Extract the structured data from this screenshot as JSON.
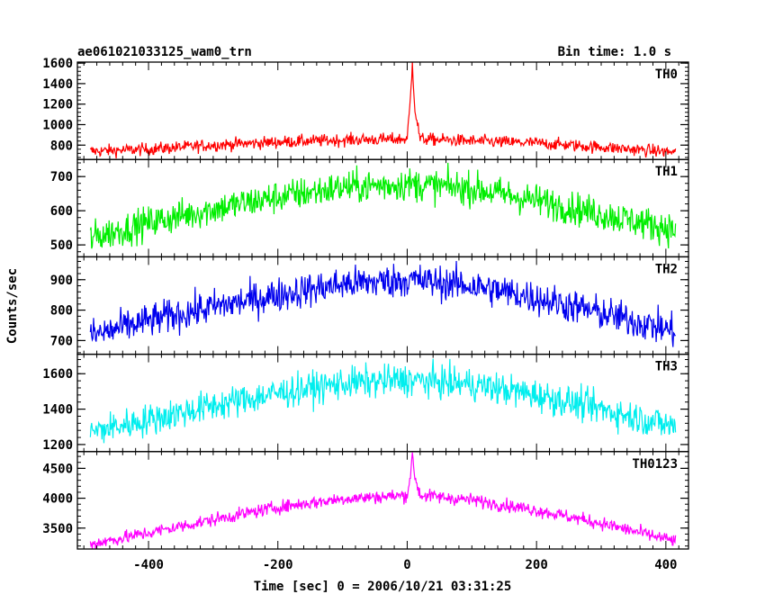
{
  "header": {
    "title": "ae061021033125_wam0_trn",
    "bin_time": "Bin time: 1.0 s"
  },
  "chart_data": {
    "type": "line",
    "xlabel": "Time [sec] 0 = 2006/10/21 03:31:25",
    "ylabel": "Counts/sec",
    "xlim": [
      -510,
      435
    ],
    "xticks": [
      -400,
      -200,
      0,
      200,
      400
    ],
    "x_range": [
      -490,
      415
    ],
    "bin_seconds": 1.0,
    "panels": [
      {
        "name": "TH0",
        "color": "#ff0000",
        "ylim": [
          660,
          1610
        ],
        "yticks": [
          800,
          1000,
          1200,
          1400,
          1600
        ],
        "series": [
          {
            "x": -490,
            "y": 740
          },
          {
            "x": -400,
            "y": 760
          },
          {
            "x": -300,
            "y": 800
          },
          {
            "x": -200,
            "y": 830
          },
          {
            "x": -100,
            "y": 850
          },
          {
            "x": 0,
            "y": 860
          },
          {
            "x": 5,
            "y": 1250
          },
          {
            "x": 8,
            "y": 1600
          },
          {
            "x": 12,
            "y": 1150
          },
          {
            "x": 20,
            "y": 860
          },
          {
            "x": 100,
            "y": 840
          },
          {
            "x": 200,
            "y": 820
          },
          {
            "x": 300,
            "y": 780
          },
          {
            "x": 415,
            "y": 730
          }
        ],
        "noise_sd": 30
      },
      {
        "name": "TH1",
        "color": "#00ee00",
        "ylim": [
          465,
          750
        ],
        "yticks": [
          500,
          600,
          700
        ],
        "series": [
          {
            "x": -490,
            "y": 520
          },
          {
            "x": -400,
            "y": 565
          },
          {
            "x": -300,
            "y": 605
          },
          {
            "x": -200,
            "y": 640
          },
          {
            "x": -100,
            "y": 668
          },
          {
            "x": 0,
            "y": 678
          },
          {
            "x": 100,
            "y": 665
          },
          {
            "x": 200,
            "y": 630
          },
          {
            "x": 300,
            "y": 590
          },
          {
            "x": 415,
            "y": 545
          }
        ],
        "noise_sd": 24
      },
      {
        "name": "TH2",
        "color": "#0000ee",
        "ylim": [
          655,
          975
        ],
        "yticks": [
          700,
          800,
          900
        ],
        "series": [
          {
            "x": -490,
            "y": 715
          },
          {
            "x": -400,
            "y": 765
          },
          {
            "x": -300,
            "y": 810
          },
          {
            "x": -200,
            "y": 850
          },
          {
            "x": -100,
            "y": 885
          },
          {
            "x": 0,
            "y": 900
          },
          {
            "x": 100,
            "y": 880
          },
          {
            "x": 200,
            "y": 840
          },
          {
            "x": 300,
            "y": 790
          },
          {
            "x": 415,
            "y": 730
          }
        ],
        "noise_sd": 28
      },
      {
        "name": "TH3",
        "color": "#00eeee",
        "ylim": [
          1160,
          1710
        ],
        "yticks": [
          1200,
          1400,
          1600
        ],
        "series": [
          {
            "x": -490,
            "y": 1270
          },
          {
            "x": -400,
            "y": 1340
          },
          {
            "x": -300,
            "y": 1420
          },
          {
            "x": -200,
            "y": 1490
          },
          {
            "x": -100,
            "y": 1545
          },
          {
            "x": 0,
            "y": 1565
          },
          {
            "x": 100,
            "y": 1540
          },
          {
            "x": 200,
            "y": 1480
          },
          {
            "x": 300,
            "y": 1400
          },
          {
            "x": 415,
            "y": 1300
          }
        ],
        "noise_sd": 45
      },
      {
        "name": "TH0123",
        "color": "#ff00ff",
        "ylim": [
          3150,
          4780
        ],
        "yticks": [
          3500,
          4000,
          4500
        ],
        "series": [
          {
            "x": -490,
            "y": 3230
          },
          {
            "x": -400,
            "y": 3420
          },
          {
            "x": -300,
            "y": 3640
          },
          {
            "x": -200,
            "y": 3850
          },
          {
            "x": -100,
            "y": 3990
          },
          {
            "x": 0,
            "y": 4050
          },
          {
            "x": 5,
            "y": 4400
          },
          {
            "x": 8,
            "y": 4700
          },
          {
            "x": 12,
            "y": 4350
          },
          {
            "x": 20,
            "y": 4050
          },
          {
            "x": 100,
            "y": 3970
          },
          {
            "x": 200,
            "y": 3800
          },
          {
            "x": 300,
            "y": 3580
          },
          {
            "x": 415,
            "y": 3280
          }
        ],
        "noise_sd": 55
      }
    ]
  }
}
